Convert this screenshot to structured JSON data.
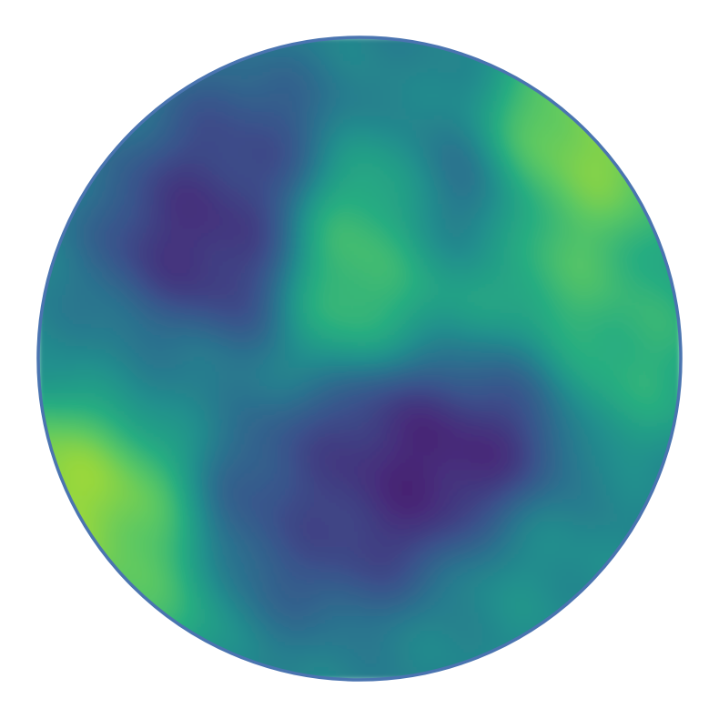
{
  "chart_data": {
    "type": "heatmap",
    "title": "",
    "colormap": "viridis",
    "domain_shape": "circle",
    "boundary_color": "#4a74b0",
    "axes_visible": false,
    "colorbar": false,
    "color_range": [
      0,
      1
    ],
    "field_features": [
      {
        "name": "upper-left-low",
        "x": -0.45,
        "y": 0.38,
        "value": 0.12
      },
      {
        "name": "upper-left-low-core",
        "x": -0.48,
        "y": 0.34,
        "value": 0.06
      },
      {
        "name": "top-left-low",
        "x": -0.35,
        "y": 0.62,
        "value": 0.18
      },
      {
        "name": "upper-right-low-streak",
        "x": 0.28,
        "y": 0.42,
        "value": 0.15
      },
      {
        "name": "central-high",
        "x": 0.0,
        "y": 0.28,
        "value": 0.78
      },
      {
        "name": "central-high-peak",
        "x": 0.05,
        "y": 0.4,
        "value": 0.84
      },
      {
        "name": "right-center-high",
        "x": 0.3,
        "y": 0.18,
        "value": 0.76
      },
      {
        "name": "right-high-ridge",
        "x": 0.6,
        "y": 0.28,
        "value": 0.8
      },
      {
        "name": "top-right-high",
        "x": 0.66,
        "y": 0.62,
        "value": 0.84
      },
      {
        "name": "top-right-peak",
        "x": 0.76,
        "y": 0.7,
        "value": 0.92
      },
      {
        "name": "right-middle-high",
        "x": 0.86,
        "y": 0.04,
        "value": 0.72
      },
      {
        "name": "lower-center-minimum",
        "x": 0.3,
        "y": -0.27,
        "value": 0.0
      },
      {
        "name": "lower-center-min-tail",
        "x": 0.22,
        "y": -0.34,
        "value": 0.06
      },
      {
        "name": "lower-low-band-a",
        "x": 0.05,
        "y": -0.42,
        "value": 0.1
      },
      {
        "name": "lower-low-band-b",
        "x": -0.14,
        "y": -0.46,
        "value": 0.16
      },
      {
        "name": "lower-low-band-c",
        "x": -0.3,
        "y": -0.48,
        "value": 0.28
      },
      {
        "name": "middle-right-low",
        "x": 0.35,
        "y": -0.05,
        "value": 0.24
      },
      {
        "name": "lower-left-high",
        "x": -0.78,
        "y": -0.42,
        "value": 0.88
      },
      {
        "name": "lower-left-peak",
        "x": -0.94,
        "y": -0.44,
        "value": 0.98
      },
      {
        "name": "lower-left-edge",
        "x": -0.7,
        "y": -0.68,
        "value": 0.8
      },
      {
        "name": "bottom-right-mid",
        "x": 0.5,
        "y": -0.65,
        "value": 0.52
      },
      {
        "name": "left-middle-mid",
        "x": -0.6,
        "y": -0.05,
        "value": 0.44
      }
    ],
    "background_value": 0.45
  }
}
